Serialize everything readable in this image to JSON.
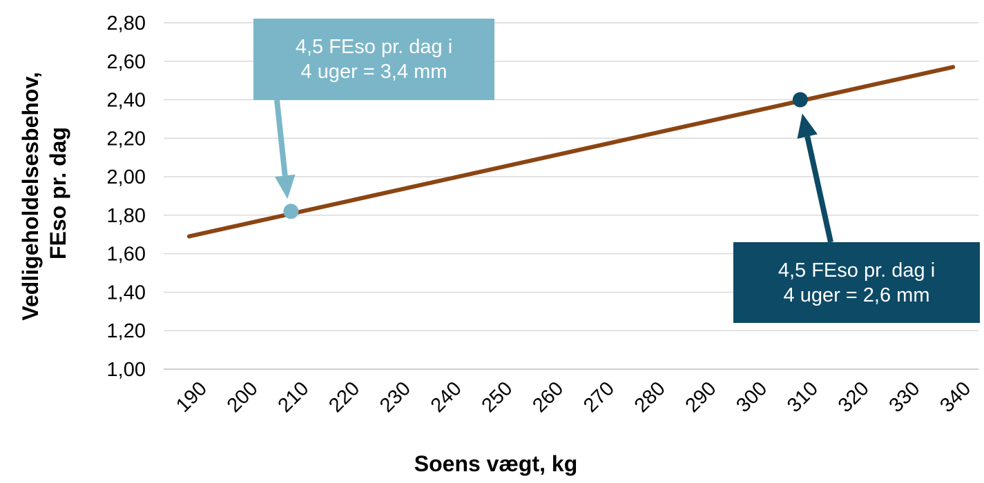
{
  "chart_data": {
    "type": "line",
    "xlabel": "Soens vægt, kg",
    "ylabel_lines": [
      "Vedligeholdelsesbehov,",
      "FEso pr. dag"
    ],
    "x_ticks": [
      "190",
      "200",
      "210",
      "220",
      "230",
      "240",
      "250",
      "260",
      "270",
      "280",
      "290",
      "300",
      "310",
      "320",
      "330",
      "340"
    ],
    "y_ticks": [
      "1,00",
      "1,20",
      "1,40",
      "1,60",
      "1,80",
      "2,00",
      "2,20",
      "2,40",
      "2,60",
      "2,80"
    ],
    "ylim": [
      1.0,
      2.8
    ],
    "xlim": [
      190,
      340
    ],
    "grid": "horizontal",
    "series": [
      {
        "color": "#8B4513",
        "x": [
          190,
          340
        ],
        "y": [
          1.69,
          2.57
        ]
      }
    ],
    "highlight_points": [
      {
        "x": 210,
        "y": 1.82,
        "color": "#7AB6C8"
      },
      {
        "x": 310,
        "y": 2.4,
        "color": "#0D4A66"
      }
    ],
    "annotations": [
      {
        "lines": [
          "4,5 FEso pr. dag i",
          "4 uger = 3,4 mm"
        ],
        "color": "#7AB6C8",
        "points_to_x": 210,
        "points_to_y": 1.82
      },
      {
        "lines": [
          "4,5 FEso pr. dag i",
          "4 uger = 2,6 mm"
        ],
        "color": "#0D4A66",
        "points_to_x": 310,
        "points_to_y": 2.4
      }
    ]
  }
}
